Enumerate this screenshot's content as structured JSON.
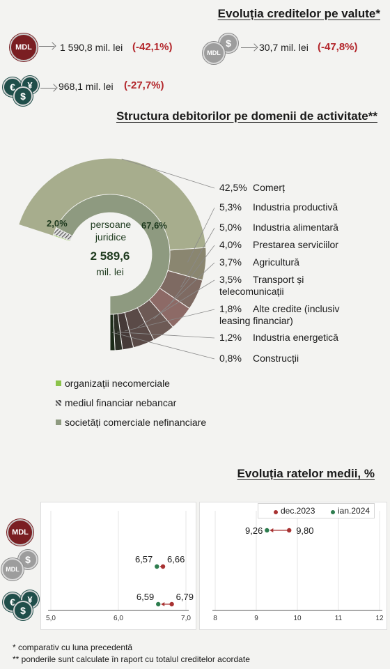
{
  "currency": {
    "title": "Evoluția creditelor pe valute*",
    "mdl": {
      "coin": "MDL",
      "value": "1 590,8 mil. lei",
      "change": "(-42,1%)"
    },
    "usd_indexed": {
      "coin": "MDL",
      "value": "30,7 mil. lei",
      "change": "(-47,8%)"
    },
    "fx": {
      "value": "968,1 mil. lei",
      "change": "(-27,7%)"
    },
    "icons": [
      "mdl-coin-icon",
      "indexed-coin-icon",
      "euro-dollar-coins-icon"
    ]
  },
  "structure": {
    "title": "Structura debitorilor pe domenii de activitate**",
    "center_line1": "persoane",
    "center_line2": "juridice",
    "center_value": "2 589,6",
    "center_unit": "mil. lei",
    "inner_label_left": "2,0%",
    "inner_label_right": "67,6%",
    "legend": [
      {
        "label": "organizații necomerciale",
        "color": "#8bc34a"
      },
      {
        "label": "mediul financiar nebancar",
        "color": "#777777"
      },
      {
        "label": "societăți comerciale nefinanciare",
        "color": "#8e9a80"
      }
    ]
  },
  "rates": {
    "title": "Evoluția ratelor medii, %",
    "legend_dec": "dec.2023",
    "legend_jan": "ian.2024",
    "colors": {
      "dec": "#a83232",
      "jan": "#2e7d4f"
    }
  },
  "chart_data": [
    {
      "type": "pie",
      "name_of_part": "structure-donut",
      "inner_ring": [
        {
          "label": "organizații necomerciale",
          "value": 0.3
        },
        {
          "label": "mediul financiar nebancar",
          "value": 2.0
        },
        {
          "label": "societăți comerciale nefinanciare",
          "value": 67.6
        }
      ],
      "outer_ring": [
        {
          "label": "Comerț",
          "value": 42.5
        },
        {
          "label": "Industria productivă",
          "value": 5.3
        },
        {
          "label": "Industria alimentară",
          "value": 5.0
        },
        {
          "label": "Prestarea serviciilor",
          "value": 4.0
        },
        {
          "label": "Agricultură",
          "value": 3.7
        },
        {
          "label": "Transport și telecomunicații",
          "value": 3.5
        },
        {
          "label": "Alte credite (inclusiv leasing financiar)",
          "value": 1.8
        },
        {
          "label": "Industria energetică",
          "value": 1.2
        },
        {
          "label": "Construcții",
          "value": 0.8
        }
      ],
      "outer_labels": [
        {
          "pct": "42,5%",
          "text": "Comerț"
        },
        {
          "pct": "5,3%",
          "text": "Industria productivă"
        },
        {
          "pct": "5,0%",
          "text": "Industria alimentară"
        },
        {
          "pct": "4,0%",
          "text": "Prestarea serviciilor"
        },
        {
          "pct": "3,7%",
          "text": "Agricultură"
        },
        {
          "pct": "3,5%",
          "text": "Transport și",
          "text2": "telecomunicații"
        },
        {
          "pct": "1,8%",
          "text": "Alte credite (inclusiv",
          "text2": "leasing financiar)"
        },
        {
          "pct": "1,2%",
          "text": "Industria energetică"
        },
        {
          "pct": "0,8%",
          "text": "Construcții"
        }
      ]
    },
    {
      "type": "scatter",
      "xlim": [
        5.0,
        7.0
      ],
      "xticks": [
        "5,0",
        "6,0",
        "7,0"
      ],
      "xtick_values": [
        5.0,
        6.0,
        7.0
      ],
      "series": [
        {
          "name": "dec.2023",
          "values": [
            6.66,
            6.79
          ]
        },
        {
          "name": "ian.2024",
          "values": [
            6.57,
            6.59
          ]
        }
      ],
      "rows": [
        "indexed",
        "fx"
      ],
      "labels": [
        [
          "6,57",
          "6,66"
        ],
        [
          "6,59",
          "6,79"
        ]
      ]
    },
    {
      "type": "scatter",
      "xlim": [
        8,
        12
      ],
      "xticks": [
        "8",
        "9",
        "10",
        "11",
        "12"
      ],
      "xtick_values": [
        8,
        9,
        10,
        11,
        12
      ],
      "series": [
        {
          "name": "dec.2023",
          "values": [
            9.8
          ]
        },
        {
          "name": "ian.2024",
          "values": [
            9.26
          ]
        }
      ],
      "rows": [
        "mdl"
      ],
      "labels": [
        [
          "9,26",
          "9,80"
        ]
      ]
    }
  ],
  "footnotes": {
    "f1": "* comparativ cu luna precedentă",
    "f2": "** ponderile sunt calculate în raport cu totalul creditelor acordate"
  }
}
